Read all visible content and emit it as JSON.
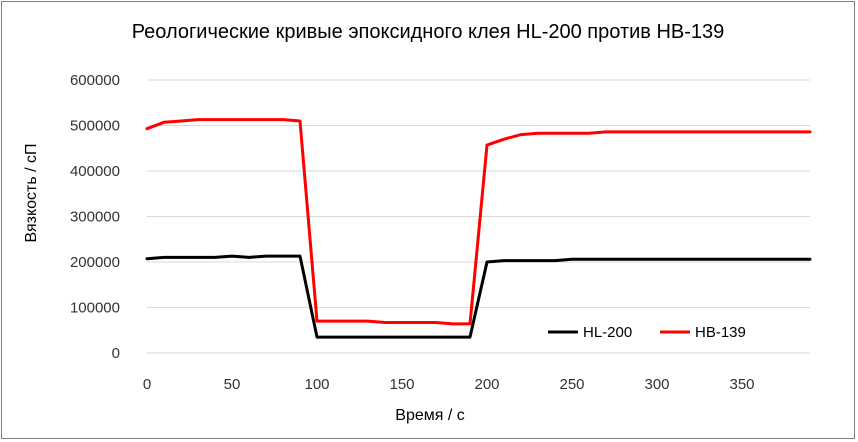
{
  "chart_data": {
    "type": "line",
    "title": "Реологические кривые эпоксидного клея HL-200 против HB-139",
    "xlabel": "Время / с",
    "ylabel": "Вязкость / сП",
    "xlim": [
      0,
      390
    ],
    "ylim": [
      0,
      600000
    ],
    "x_ticks": [
      "0",
      "50",
      "100",
      "150",
      "200",
      "250",
      "300",
      "350"
    ],
    "y_ticks": [
      "0",
      "100000",
      "200000",
      "300000",
      "400000",
      "500000",
      "600000"
    ],
    "grid": "horizontal",
    "legend_position": "bottom-right",
    "series": [
      {
        "name": "HL-200",
        "color": "#000000",
        "points": [
          [
            0,
            207000
          ],
          [
            10,
            210000
          ],
          [
            20,
            210000
          ],
          [
            30,
            210000
          ],
          [
            40,
            210000
          ],
          [
            50,
            213000
          ],
          [
            60,
            210000
          ],
          [
            70,
            213000
          ],
          [
            80,
            213000
          ],
          [
            90,
            213000
          ],
          [
            100,
            35000
          ],
          [
            110,
            35000
          ],
          [
            120,
            35000
          ],
          [
            130,
            35000
          ],
          [
            140,
            35000
          ],
          [
            150,
            35000
          ],
          [
            160,
            35000
          ],
          [
            170,
            35000
          ],
          [
            180,
            35000
          ],
          [
            190,
            35000
          ],
          [
            200,
            200000
          ],
          [
            210,
            203000
          ],
          [
            220,
            203000
          ],
          [
            230,
            203000
          ],
          [
            240,
            203000
          ],
          [
            250,
            206000
          ],
          [
            260,
            206000
          ],
          [
            270,
            206000
          ],
          [
            280,
            206000
          ],
          [
            290,
            206000
          ],
          [
            300,
            206000
          ],
          [
            310,
            206000
          ],
          [
            320,
            206000
          ],
          [
            330,
            206000
          ],
          [
            340,
            206000
          ],
          [
            350,
            206000
          ],
          [
            360,
            206000
          ],
          [
            370,
            206000
          ],
          [
            380,
            206000
          ],
          [
            390,
            206000
          ]
        ]
      },
      {
        "name": "HB-139",
        "color": "#ff0000",
        "points": [
          [
            0,
            493000
          ],
          [
            10,
            507000
          ],
          [
            20,
            510000
          ],
          [
            30,
            513000
          ],
          [
            40,
            513000
          ],
          [
            50,
            513000
          ],
          [
            60,
            513000
          ],
          [
            70,
            513000
          ],
          [
            80,
            513000
          ],
          [
            90,
            510000
          ],
          [
            100,
            70000
          ],
          [
            110,
            70000
          ],
          [
            120,
            70000
          ],
          [
            130,
            70000
          ],
          [
            140,
            67000
          ],
          [
            150,
            67000
          ],
          [
            160,
            67000
          ],
          [
            170,
            67000
          ],
          [
            180,
            64000
          ],
          [
            190,
            64000
          ],
          [
            200,
            457000
          ],
          [
            210,
            470000
          ],
          [
            220,
            480000
          ],
          [
            230,
            483000
          ],
          [
            240,
            483000
          ],
          [
            250,
            483000
          ],
          [
            260,
            483000
          ],
          [
            270,
            486000
          ],
          [
            280,
            486000
          ],
          [
            290,
            486000
          ],
          [
            300,
            486000
          ],
          [
            310,
            486000
          ],
          [
            320,
            486000
          ],
          [
            330,
            486000
          ],
          [
            340,
            486000
          ],
          [
            350,
            486000
          ],
          [
            360,
            486000
          ],
          [
            370,
            486000
          ],
          [
            380,
            486000
          ],
          [
            390,
            486000
          ]
        ]
      }
    ]
  }
}
